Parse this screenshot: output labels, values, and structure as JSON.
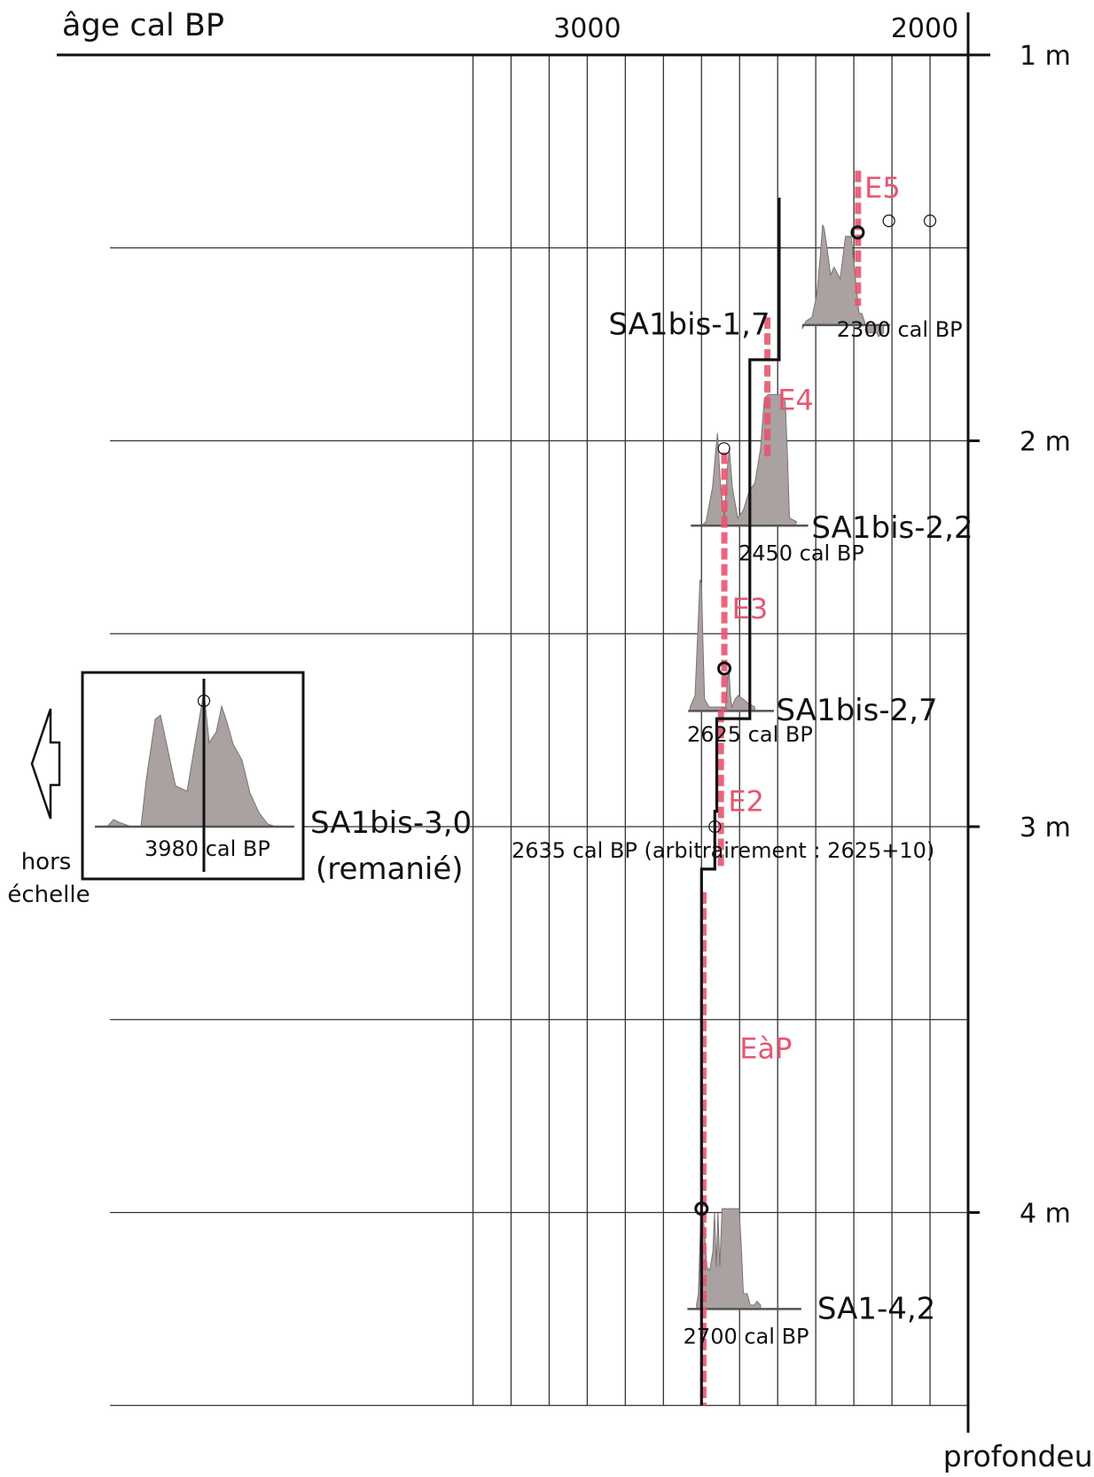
{
  "chart_data": {
    "type": "age-depth",
    "title": "",
    "axes": {
      "x_title": "âge cal BP",
      "x_ticks": [
        {
          "label": "3000",
          "value": 3000
        },
        {
          "label": "2000",
          "value": 2000
        }
      ],
      "x_range": [
        3300,
        2000
      ],
      "x_gridlines": [
        3300,
        3200,
        3100,
        3000,
        2900,
        2800,
        2700,
        2600,
        2500,
        2400,
        2300,
        2200,
        2100
      ],
      "y_title": "profondeur",
      "y_ticks": [
        {
          "label": "1 m",
          "value": 1
        },
        {
          "label": "2 m",
          "value": 2
        },
        {
          "label": "3 m",
          "value": 3
        },
        {
          "label": "4 m",
          "value": 4
        }
      ],
      "y_range": [
        1,
        4.5
      ],
      "y_gridlines": [
        1.5,
        2,
        2.5,
        3,
        3.5,
        4,
        4.5
      ]
    },
    "samples": [
      {
        "name": "SA1bis-1,7",
        "depth": 1.7,
        "age_label": "2300 cal BP",
        "age": 2300,
        "distribution": [
          [
            2435,
            1.71
          ],
          [
            2426,
            1.69
          ],
          [
            2410,
            1.68
          ],
          [
            2397,
            1.62
          ],
          [
            2388,
            1.52
          ],
          [
            2382,
            1.44
          ],
          [
            2378,
            1.45
          ],
          [
            2369,
            1.51
          ],
          [
            2361,
            1.57
          ],
          [
            2352,
            1.55
          ],
          [
            2336,
            1.58
          ],
          [
            2322,
            1.47
          ],
          [
            2307,
            1.47
          ],
          [
            2295,
            1.59
          ],
          [
            2286,
            1.67
          ],
          [
            2279,
            1.67
          ],
          [
            2262,
            1.72
          ],
          [
            2240,
            1.72
          ],
          [
            2235,
            1.73
          ],
          [
            2222,
            1.72
          ]
        ]
      },
      {
        "name": "SA1bis-2,2",
        "depth": 2.22,
        "age_label": "2450 cal BP",
        "age": 2450,
        "distribution": [
          [
            2701,
            2.22
          ],
          [
            2688,
            2.21
          ],
          [
            2671,
            2.12
          ],
          [
            2663,
            2.03
          ],
          [
            2658,
            1.98
          ],
          [
            2655,
            2.03
          ],
          [
            2650,
            2.12
          ],
          [
            2640,
            2.2
          ],
          [
            2632,
            2.07
          ],
          [
            2627,
            2.02
          ],
          [
            2619,
            2.12
          ],
          [
            2605,
            2.2
          ],
          [
            2590,
            2.18
          ],
          [
            2575,
            2.13
          ],
          [
            2560,
            2.11
          ],
          [
            2545,
            2.02
          ],
          [
            2535,
            1.89
          ],
          [
            2525,
            1.88
          ],
          [
            2490,
            1.88
          ],
          [
            2480,
            1.9
          ],
          [
            2474,
            2.05
          ],
          [
            2469,
            2.2
          ],
          [
            2450,
            2.21
          ],
          [
            2455,
            2.22
          ]
        ]
      },
      {
        "name": "SA1bis-2,7",
        "depth": 2.7,
        "age_label": "2625 cal BP",
        "age": 2625,
        "distribution": [
          [
            2730,
            2.69
          ],
          [
            2717,
            2.66
          ],
          [
            2710,
            2.5
          ],
          [
            2704,
            2.36
          ],
          [
            2700,
            2.37
          ],
          [
            2696,
            2.53
          ],
          [
            2692,
            2.67
          ],
          [
            2680,
            2.69
          ],
          [
            2637,
            2.69
          ],
          [
            2632,
            2.62
          ],
          [
            2628,
            2.59
          ],
          [
            2624,
            2.66
          ],
          [
            2620,
            2.69
          ],
          [
            2612,
            2.67
          ],
          [
            2604,
            2.66
          ],
          [
            2590,
            2.67
          ],
          [
            2578,
            2.68
          ],
          [
            2560,
            2.69
          ]
        ]
      },
      {
        "name": "SA1bis-3,0",
        "depth": 3.0,
        "age_label": "3980 cal BP",
        "age": 3980,
        "annotation": "(remanié)"
      },
      {
        "name": "",
        "depth": 3.0,
        "age_label": "2635 cal BP (arbitrairement : 2625+10)",
        "age": 2635
      },
      {
        "name": "SA1-4,2",
        "depth": 4.25,
        "age_label": "2700 cal BP",
        "age": 2700,
        "distribution": [
          [
            2713,
            4.24
          ],
          [
            2708,
            4.21
          ],
          [
            2702,
            4.02
          ],
          [
            2699,
            3.99
          ],
          [
            2694,
            4.03
          ],
          [
            2686,
            4.14
          ],
          [
            2678,
            4.15
          ],
          [
            2670,
            4.1
          ],
          [
            2666,
            4.0
          ],
          [
            2661,
            4.14
          ],
          [
            2657,
            4.0
          ],
          [
            2652,
            4.14
          ],
          [
            2646,
            3.99
          ],
          [
            2630,
            3.99
          ],
          [
            2601,
            3.99
          ],
          [
            2595,
            4.1
          ],
          [
            2590,
            4.21
          ],
          [
            2580,
            4.21
          ],
          [
            2572,
            4.24
          ],
          [
            2562,
            4.24
          ],
          [
            2554,
            4.23
          ],
          [
            2545,
            4.24
          ]
        ]
      }
    ],
    "age_model": [
      [
        2700,
        4.5
      ],
      [
        2700,
        3.11
      ],
      [
        2665,
        3.11
      ],
      [
        2665,
        2.96
      ],
      [
        2660,
        2.96
      ],
      [
        2660,
        2.72
      ],
      [
        2573,
        2.72
      ],
      [
        2573,
        1.79
      ],
      [
        2496,
        1.79
      ],
      [
        2496,
        1.37
      ]
    ],
    "events": [
      {
        "label": "E5",
        "age": 2289,
        "depth_range": [
          1.3,
          1.65
        ]
      },
      {
        "label": "E4",
        "age": 2527,
        "depth_range": [
          1.68,
          2.05
        ]
      },
      {
        "label": "E3",
        "age": 2640,
        "depth_range": [
          2.03,
          2.7
        ]
      },
      {
        "label": "E2",
        "age": 2649,
        "depth_range": [
          2.7,
          3.11
        ]
      },
      {
        "label": "EàP",
        "age": 2695,
        "depth_range": [
          3.17,
          4.5
        ]
      }
    ],
    "inset": {
      "side_label_1": "hors",
      "side_label_2": "échelle"
    }
  }
}
